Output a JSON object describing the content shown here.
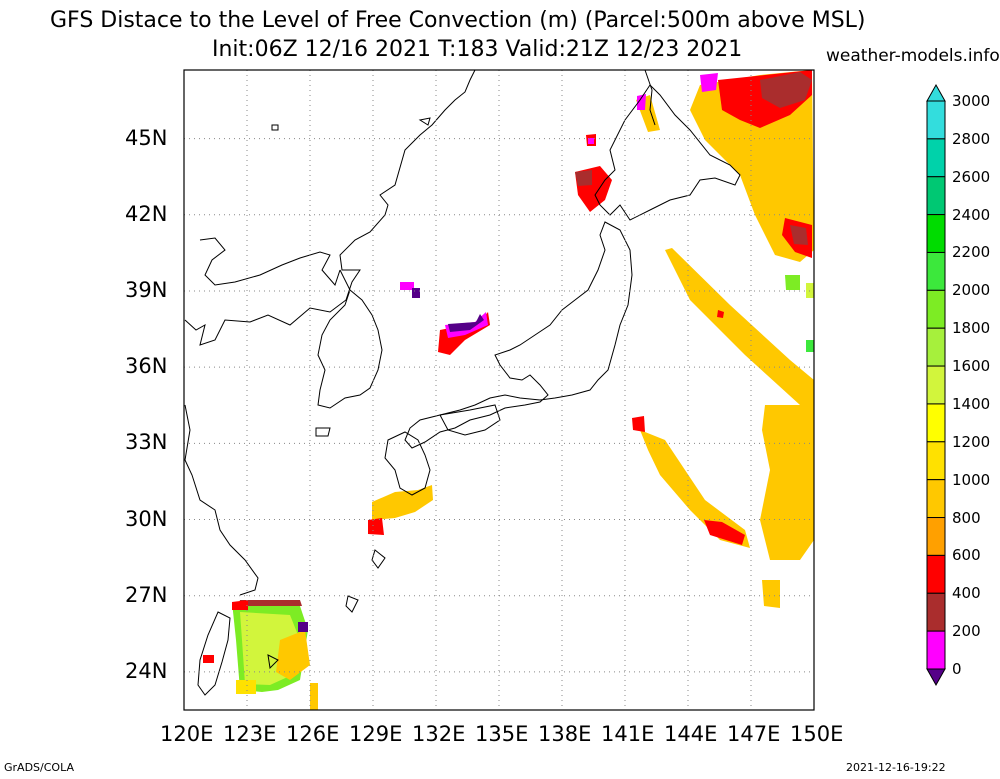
{
  "header": {
    "title_line1": "GFS Distace to the Level of Free Convection (m) (Parcel:500m above MSL)",
    "title_line2": "Init:06Z 12/16 2021 T:183 Valid:21Z 12/23 2021",
    "site": "weather-models.info"
  },
  "footer": {
    "left": "GrADS/COLA",
    "right": "2021-12-16-19:22"
  },
  "map": {
    "lon_labels": [
      "120E",
      "123E",
      "126E",
      "129E",
      "132E",
      "135E",
      "138E",
      "141E",
      "144E",
      "147E",
      "150E"
    ],
    "lat_labels": [
      "45N",
      "42N",
      "39N",
      "36N",
      "33N",
      "30N",
      "27N",
      "24N"
    ],
    "lon_range": [
      120,
      150
    ],
    "lat_range": [
      22.5,
      47.7
    ],
    "grid": "dotted"
  },
  "colorbar": {
    "labels": [
      "3000",
      "2800",
      "2600",
      "2400",
      "2200",
      "2000",
      "1800",
      "1600",
      "1400",
      "1200",
      "1000",
      "800",
      "600",
      "400",
      "200",
      "0"
    ],
    "colors": [
      "#33dddd",
      "#00d2aa",
      "#00c873",
      "#00dc00",
      "#3ce83c",
      "#7dec24",
      "#a6f03c",
      "#d2f53c",
      "#ffff00",
      "#ffe100",
      "#ffc800",
      "#ffa000",
      "#ff0000",
      "#aa2d2d",
      "#ff00ff",
      "#550088"
    ]
  }
}
